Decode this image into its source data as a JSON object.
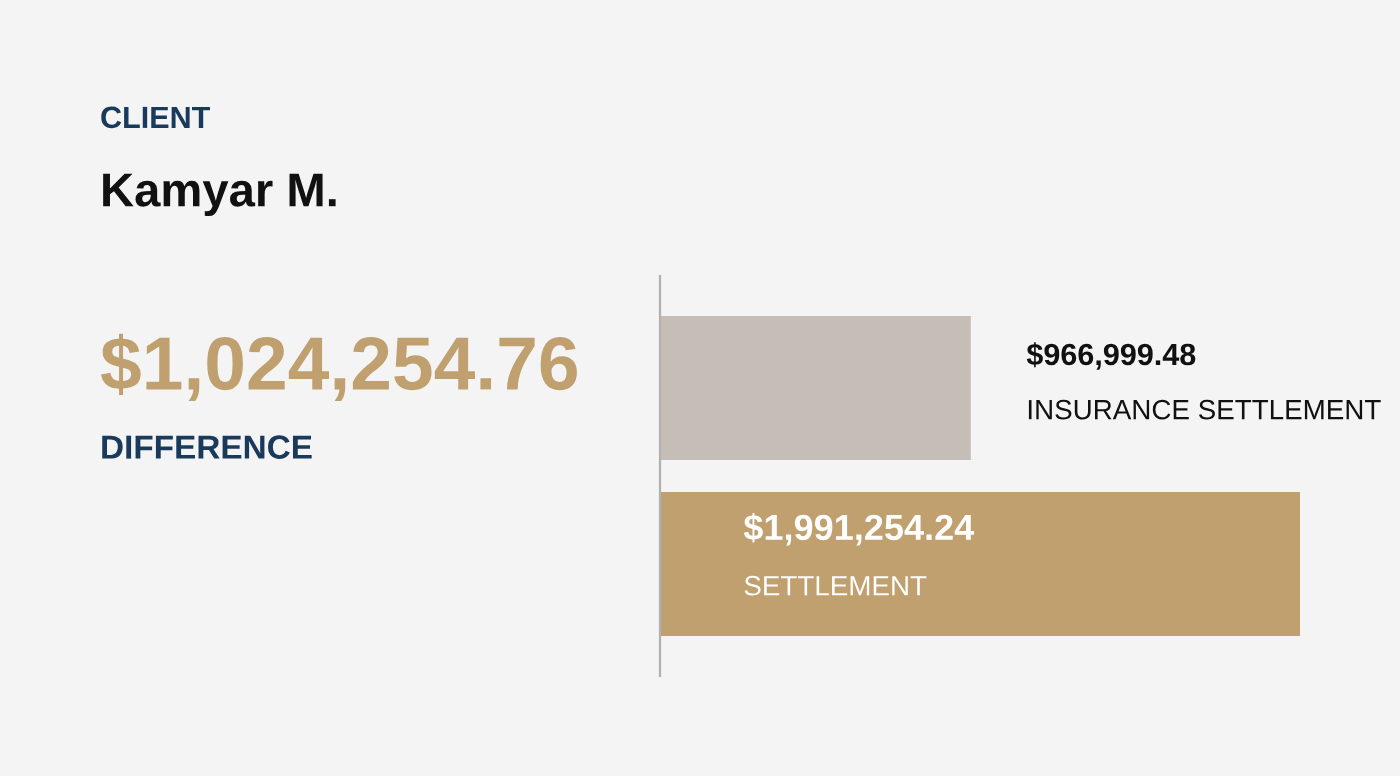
{
  "chart_data": {
    "type": "bar",
    "orientation": "horizontal",
    "categories": [
      "INSURANCE SETTLEMENT",
      "SETTLEMENT"
    ],
    "values": [
      966999.48,
      1991254.24
    ],
    "colors": [
      "#c4beb6",
      "#c0a06f"
    ],
    "value_labels": [
      "$966,999.48",
      "$1,991,254.24"
    ],
    "annotations": [
      "CLIENT",
      "Kamyar M.",
      "$1,024,254.76",
      "DIFFERENCE"
    ],
    "tick_labels": false
  }
}
